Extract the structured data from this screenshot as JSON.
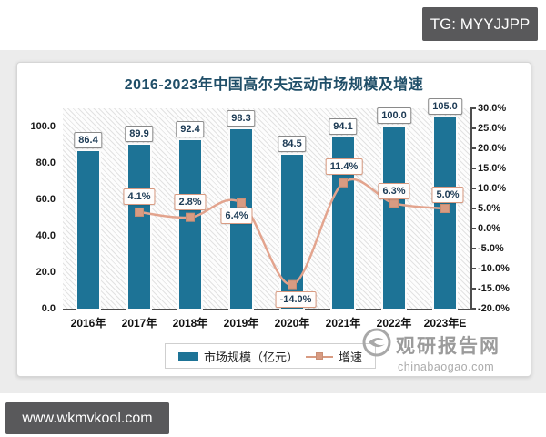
{
  "overlays": {
    "tg_badge": "TG: MYYJJPP",
    "url_badge": "www.wkmvkool.com"
  },
  "watermark": {
    "site_name": "观研报告网",
    "site_url": "chinabaogao.com"
  },
  "chart_data": {
    "type": "bar+line combo",
    "title": "2016-2023年中国高尔夫运动市场规模及增速",
    "categories": [
      "2016年",
      "2017年",
      "2018年",
      "2019年",
      "2020年",
      "2021年",
      "2022年",
      "2023年E"
    ],
    "series": [
      {
        "name": "市场规模（亿元）",
        "type": "bar",
        "color": "#1d7396",
        "values": [
          86.4,
          89.9,
          92.4,
          98.3,
          84.5,
          94.1,
          100.0,
          105.0
        ],
        "labels": [
          "86.4",
          "89.9",
          "92.4",
          "98.3",
          "84.5",
          "94.1",
          "100.0",
          "105.0"
        ]
      },
      {
        "name": "增速",
        "type": "line",
        "color": "#e3a48e",
        "marker_color": "#d89b82",
        "values": [
          null,
          4.1,
          2.8,
          6.4,
          -14.0,
          11.4,
          6.3,
          5.0
        ],
        "labels": [
          null,
          "4.1%",
          "2.8%",
          "6.4%",
          "-14.0%",
          "11.4%",
          "6.3%",
          "5.0%"
        ]
      }
    ],
    "left_axis": {
      "ticks": [
        "0.0",
        "20.0",
        "40.0",
        "60.0",
        "80.0",
        "100.0"
      ],
      "min": 0,
      "max": 110
    },
    "right_axis": {
      "ticks": [
        "30.0%",
        "25.0%",
        "20.0%",
        "15.0%",
        "10.0%",
        "5.0%",
        "0.0%",
        "-5.0%",
        "-10.0%",
        "-15.0%",
        "-20.0%"
      ],
      "min": -20,
      "max": 30
    },
    "legend": {
      "position": "bottom",
      "items": [
        "市场规模（亿元）",
        "增速"
      ]
    },
    "grid": false
  }
}
